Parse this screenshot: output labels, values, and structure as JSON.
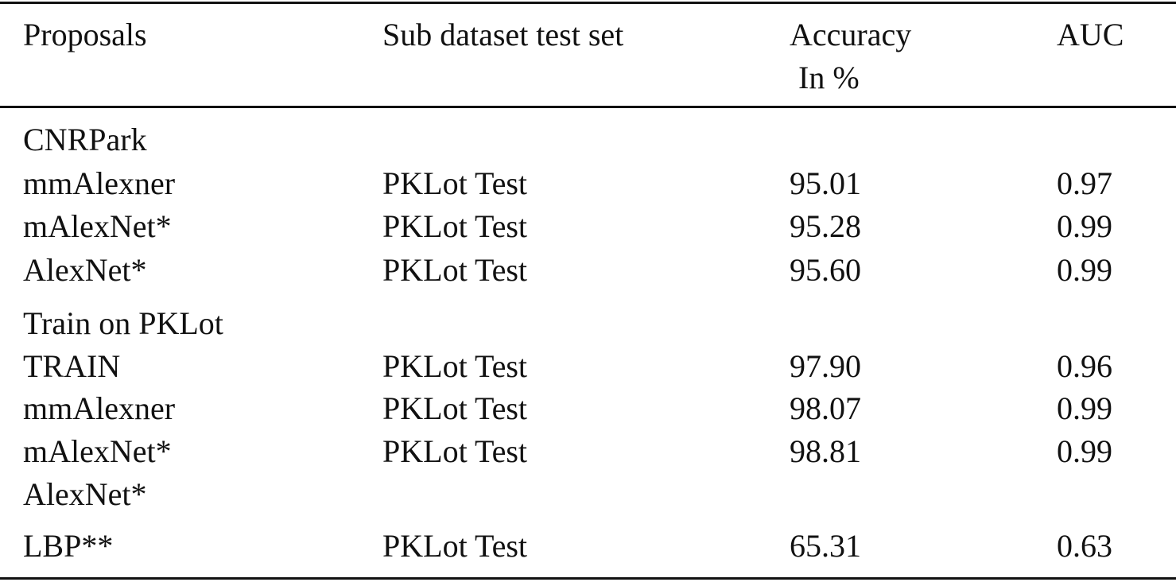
{
  "table": {
    "headers": {
      "proposals": "Proposals",
      "subset": "Sub dataset test set",
      "accuracy_line1": "Accuracy",
      "accuracy_line2": "In %",
      "auc": "AUC"
    },
    "rows": [
      {
        "proposal": "CNRPark",
        "subset": "",
        "accuracy": "",
        "auc": ""
      },
      {
        "proposal": "mmAlexner",
        "subset": "PKLot Test",
        "accuracy": "95.01",
        "auc": "0.97"
      },
      {
        "proposal": "mAlexNet*",
        "subset": "PKLot Test",
        "accuracy": "95.28",
        "auc": "0.99"
      },
      {
        "proposal": "AlexNet*",
        "subset": "PKLot Test",
        "accuracy": "95.60",
        "auc": "0.99"
      },
      {
        "proposal": "Train on PKLot",
        "subset": "",
        "accuracy": "",
        "auc": ""
      },
      {
        "proposal": "TRAIN",
        "subset": "PKLot Test",
        "accuracy": "97.90",
        "auc": "0.96"
      },
      {
        "proposal": "mmAlexner",
        "subset": "PKLot Test",
        "accuracy": "98.07",
        "auc": "0.99"
      },
      {
        "proposal": "mAlexNet*",
        "subset": "PKLot Test",
        "accuracy": "98.81",
        "auc": "0.99"
      },
      {
        "proposal": "AlexNet*",
        "subset": "",
        "accuracy": "",
        "auc": ""
      },
      {
        "proposal": "LBP**",
        "subset": "PKLot Test",
        "accuracy": "65.31",
        "auc": "0.63"
      }
    ]
  }
}
